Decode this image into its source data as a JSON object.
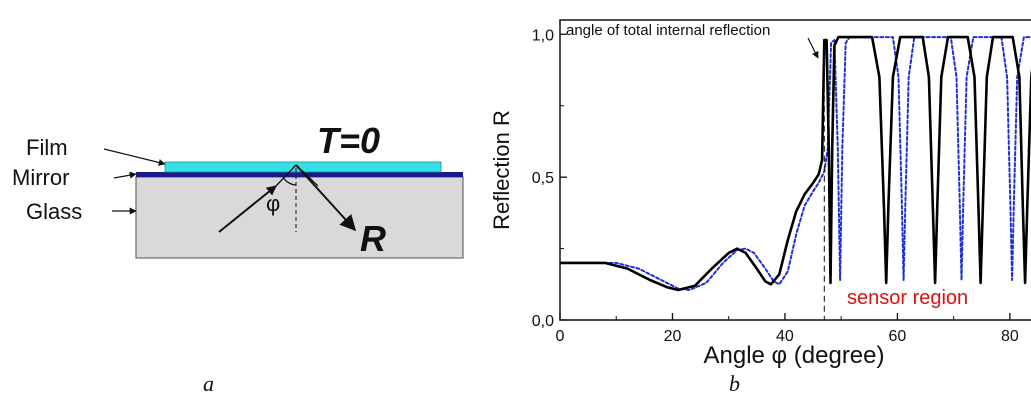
{
  "panel_a": {
    "caption": "a",
    "labels": {
      "film": "Film",
      "mirror": "Mirror",
      "glass": "Glass",
      "transmission": "T=0",
      "angle": "φ",
      "reflected": "R"
    },
    "colors": {
      "film": "#33e0e6",
      "mirror": "#1a1a8c",
      "glass": "#d9d9d9"
    }
  },
  "panel_b": {
    "caption": "b",
    "annotation": "angle of total internal reflection",
    "region_label": "sensor region",
    "colors": {
      "series_solid": "#000000",
      "series_dashed": "#1f2fd6",
      "region_label": "#e01010"
    }
  },
  "chart_data": {
    "type": "line",
    "xlabel": "Angle φ (degree)",
    "ylabel": "Reflection R",
    "xlim": [
      0,
      85
    ],
    "ylim": [
      0,
      1.05
    ],
    "xticks": [
      0,
      20,
      40,
      60,
      80
    ],
    "xtick_labels": [
      "0",
      "20",
      "40",
      "60",
      "80"
    ],
    "yticks": [
      0,
      0.5,
      1.0
    ],
    "ytick_labels": [
      "0,0",
      "0,5",
      "1,0"
    ],
    "tir_angle": 47,
    "series": [
      {
        "style": "solid",
        "points": [
          [
            0,
            0.2
          ],
          [
            8,
            0.2
          ],
          [
            12,
            0.18
          ],
          [
            16,
            0.14
          ],
          [
            19,
            0.115
          ],
          [
            21,
            0.105
          ],
          [
            24,
            0.12
          ],
          [
            27,
            0.18
          ],
          [
            30,
            0.235
          ],
          [
            31.5,
            0.25
          ],
          [
            33,
            0.235
          ],
          [
            35,
            0.18
          ],
          [
            36.5,
            0.135
          ],
          [
            37.5,
            0.125
          ],
          [
            39,
            0.16
          ],
          [
            40.5,
            0.28
          ],
          [
            42,
            0.38
          ],
          [
            43.5,
            0.44
          ],
          [
            45,
            0.48
          ],
          [
            46,
            0.51
          ],
          [
            46.6,
            0.56
          ],
          [
            47,
            0.98
          ],
          [
            47.4,
            0.98
          ],
          [
            47.8,
            0.6
          ],
          [
            48.1,
            0.13
          ],
          [
            48.4,
            0.6
          ],
          [
            48.8,
            0.96
          ],
          [
            49.5,
            0.99
          ],
          [
            55.5,
            0.99
          ],
          [
            56.8,
            0.85
          ],
          [
            57.6,
            0.4
          ],
          [
            58,
            0.13
          ],
          [
            58.4,
            0.4
          ],
          [
            59.2,
            0.85
          ],
          [
            60.5,
            0.99
          ],
          [
            64.5,
            0.99
          ],
          [
            65.6,
            0.85
          ],
          [
            66.3,
            0.4
          ],
          [
            66.7,
            0.13
          ],
          [
            67.1,
            0.4
          ],
          [
            67.8,
            0.85
          ],
          [
            69,
            0.99
          ],
          [
            72.5,
            0.99
          ],
          [
            73.7,
            0.85
          ],
          [
            74.4,
            0.4
          ],
          [
            74.8,
            0.13
          ],
          [
            75.2,
            0.4
          ],
          [
            75.9,
            0.85
          ],
          [
            77,
            0.99
          ],
          [
            80.5,
            0.99
          ],
          [
            81.7,
            0.85
          ],
          [
            82.3,
            0.4
          ],
          [
            82.7,
            0.13
          ],
          [
            83.1,
            0.4
          ],
          [
            83.8,
            0.85
          ],
          [
            84.5,
            0.97
          ],
          [
            85,
            0.99
          ]
        ]
      },
      {
        "style": "dashed",
        "points": [
          [
            0,
            0.2
          ],
          [
            10,
            0.2
          ],
          [
            14,
            0.18
          ],
          [
            18,
            0.14
          ],
          [
            21,
            0.11
          ],
          [
            23,
            0.105
          ],
          [
            26,
            0.13
          ],
          [
            29,
            0.2
          ],
          [
            31.5,
            0.245
          ],
          [
            33,
            0.25
          ],
          [
            34.5,
            0.235
          ],
          [
            36.5,
            0.18
          ],
          [
            38,
            0.135
          ],
          [
            39,
            0.125
          ],
          [
            40.5,
            0.17
          ],
          [
            42,
            0.3
          ],
          [
            43.5,
            0.4
          ],
          [
            45,
            0.45
          ],
          [
            46,
            0.48
          ],
          [
            47,
            0.52
          ],
          [
            47.6,
            0.6
          ],
          [
            48.2,
            0.97
          ],
          [
            48.8,
            0.98
          ],
          [
            49.4,
            0.6
          ],
          [
            49.8,
            0.14
          ],
          [
            50.2,
            0.6
          ],
          [
            50.8,
            0.97
          ],
          [
            51.5,
            0.99
          ],
          [
            59.2,
            0.99
          ],
          [
            60.2,
            0.85
          ],
          [
            60.8,
            0.4
          ],
          [
            61.1,
            0.14
          ],
          [
            61.4,
            0.4
          ],
          [
            62,
            0.85
          ],
          [
            63,
            0.99
          ],
          [
            69.5,
            0.99
          ],
          [
            70.5,
            0.85
          ],
          [
            71.1,
            0.4
          ],
          [
            71.4,
            0.14
          ],
          [
            71.7,
            0.4
          ],
          [
            72.3,
            0.85
          ],
          [
            73.5,
            0.99
          ],
          [
            78.5,
            0.99
          ],
          [
            79.5,
            0.85
          ],
          [
            80.1,
            0.4
          ],
          [
            80.4,
            0.14
          ],
          [
            80.7,
            0.4
          ],
          [
            81.3,
            0.85
          ],
          [
            82.5,
            0.99
          ],
          [
            85,
            0.99
          ]
        ]
      }
    ]
  }
}
